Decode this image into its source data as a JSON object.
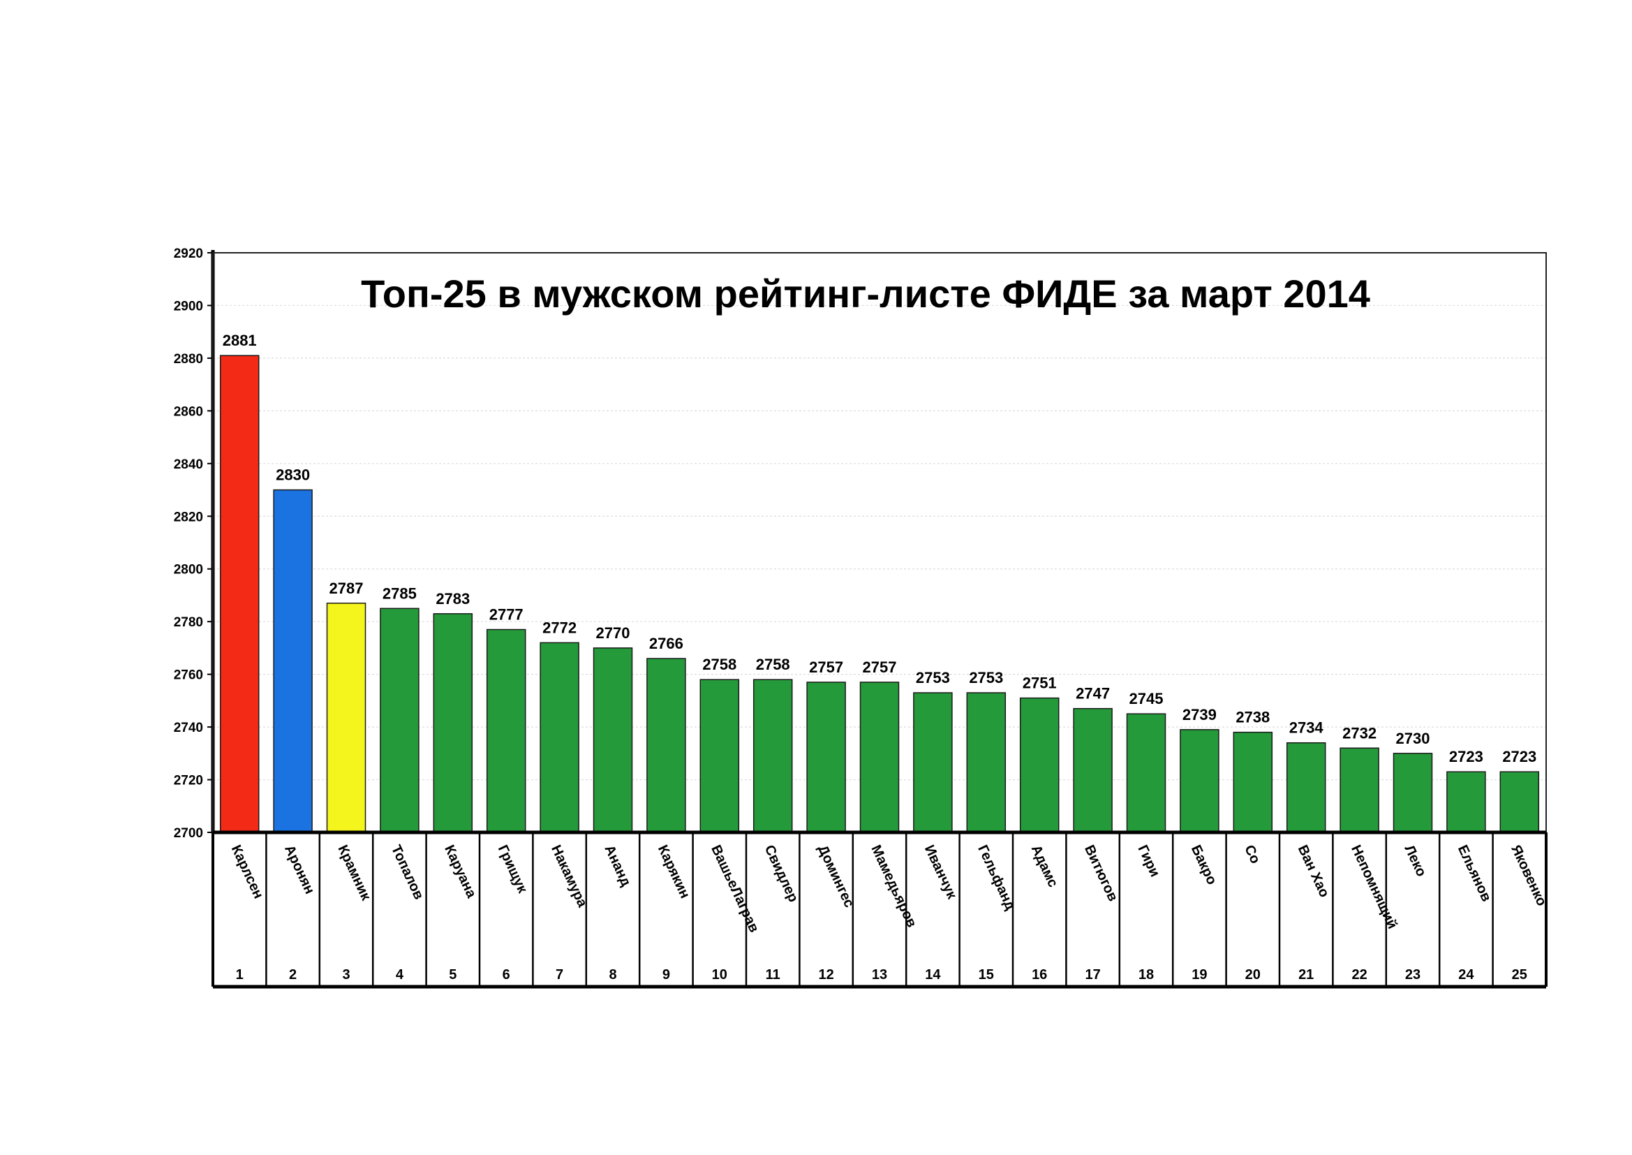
{
  "chart_data": {
    "type": "bar",
    "title": "Топ-25 в мужском рейтинг-листе ФИДЕ за март 2014",
    "xlabel": "",
    "ylabel": "",
    "ylim": [
      2700,
      2920
    ],
    "yticks": [
      "2700",
      "2720",
      "2740",
      "2760",
      "2780",
      "2800",
      "2820",
      "2840",
      "2860",
      "2880",
      "2900",
      "2920"
    ],
    "grid": true,
    "legend": "none",
    "categories": [
      "Карлсен",
      "Аронян",
      "Крамник",
      "Топалов",
      "Каруана",
      "Грищук",
      "Накамура",
      "Ананд",
      "Карякин",
      "ВашьеЛаграв",
      "Свидлер",
      "Домингес",
      "Мамедьяров",
      "Иванчук",
      "Гельфанд",
      "Адамс",
      "Витюгов",
      "Гири",
      "Бакро",
      "Со",
      "Ван Хао",
      "Непомнящий",
      "Леко",
      "Ельянов",
      "Яковенко"
    ],
    "ranks": [
      "1",
      "2",
      "3",
      "4",
      "5",
      "6",
      "7",
      "8",
      "9",
      "10",
      "11",
      "12",
      "13",
      "14",
      "15",
      "16",
      "17",
      "18",
      "19",
      "20",
      "21",
      "22",
      "23",
      "24",
      "25"
    ],
    "values": [
      2881,
      2830,
      2787,
      2785,
      2783,
      2777,
      2772,
      2770,
      2766,
      2758,
      2758,
      2757,
      2757,
      2753,
      2753,
      2751,
      2747,
      2745,
      2739,
      2738,
      2734,
      2732,
      2730,
      2723,
      2723
    ],
    "value_labels": [
      "2881",
      "2830",
      "2787",
      "2785",
      "2783",
      "2777",
      "2772",
      "2770",
      "2766",
      "2758",
      "2758",
      "2757",
      "2757",
      "2753",
      "2753",
      "2751",
      "2747",
      "2745",
      "2739",
      "2738",
      "2734",
      "2732",
      "2730",
      "2723",
      "2723"
    ],
    "colors": {
      "first": "#f22a16",
      "second": "#1a73e0",
      "third": "#f5f51e",
      "rest": "#249a3a",
      "stroke": "#1a1a1a"
    }
  }
}
